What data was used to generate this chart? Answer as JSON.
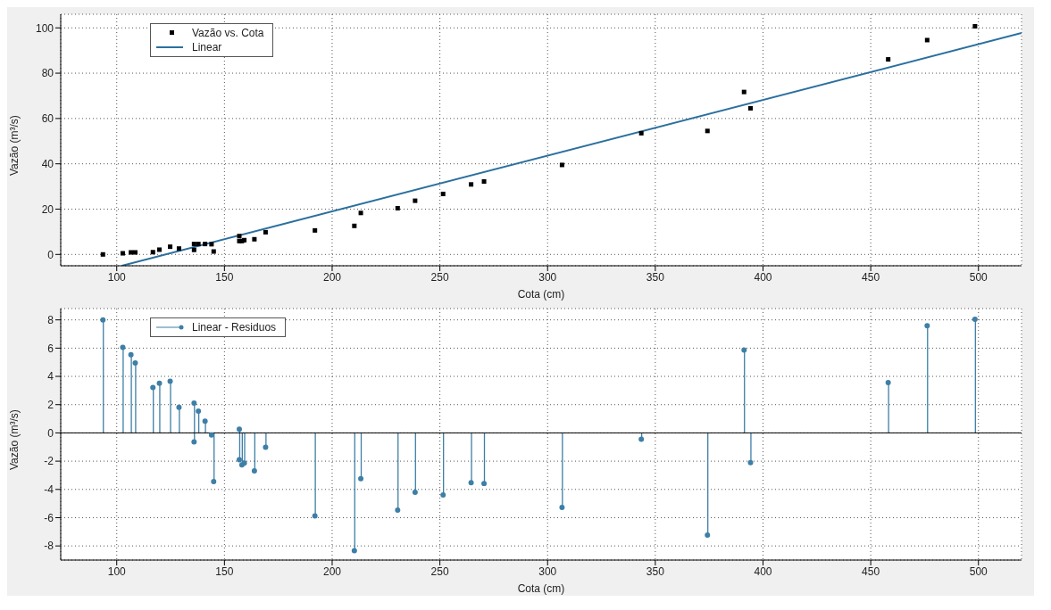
{
  "chart_data": [
    {
      "type": "scatter",
      "xlabel": "Cota (cm)",
      "ylabel": "Vazão (m³/s)",
      "xlim": [
        74,
        520
      ],
      "ylim": [
        -5,
        106
      ],
      "xticks": [
        100,
        150,
        200,
        250,
        300,
        350,
        400,
        450,
        500
      ],
      "yticks": [
        0,
        20,
        40,
        60,
        80,
        100
      ],
      "grid": true,
      "legend": "top left",
      "series": [
        {
          "name": "Vazão vs. Cota",
          "type": "scatter",
          "color": "#000000",
          "marker": "square",
          "x": [
            93.6,
            102.8,
            106.6,
            108.6,
            116.8,
            119.8,
            124.8,
            128.9,
            135.9,
            135.9,
            137.9,
            141.0,
            144.0,
            145.0,
            156.9,
            156.9,
            158.1,
            159.2,
            163.9,
            169.1,
            192.0,
            210.3,
            213.3,
            230.4,
            238.5,
            251.5,
            264.5,
            270.5,
            306.7,
            343.5,
            374.2,
            391.2,
            394.2,
            458.1,
            476.2,
            498.4
          ],
          "values": [
            0.0,
            0.5,
            0.9,
            0.9,
            1.0,
            2.1,
            3.4,
            2.6,
            4.6,
            2.0,
            4.6,
            4.6,
            4.5,
            1.3,
            8.1,
            5.9,
            5.9,
            6.3,
            6.7,
            9.8,
            10.6,
            12.6,
            18.3,
            20.4,
            23.7,
            26.7,
            30.9,
            32.2,
            39.5,
            53.5,
            54.5,
            71.7,
            64.5,
            86.1,
            94.6,
            100.7
          ]
        },
        {
          "name": "Linear",
          "type": "line",
          "color": "#2b6f9e",
          "marker": "none",
          "x": [
            102.4,
            520
          ],
          "values": [
            -5,
            97.7
          ]
        }
      ]
    },
    {
      "type": "lollipop",
      "xlabel": "Cota (cm)",
      "ylabel": "Vazão (m³/s)",
      "xlim": [
        74,
        520
      ],
      "ylim": [
        -9,
        8.8
      ],
      "xticks": [
        100,
        150,
        200,
        250,
        300,
        350,
        400,
        450,
        500
      ],
      "yticks": [
        -8,
        -6,
        -4,
        -2,
        0,
        2,
        4,
        6,
        8
      ],
      "grid": true,
      "legend": "top left",
      "series": [
        {
          "name": "Linear - Residuos",
          "type": "lollipop",
          "color": "#3d7fa6",
          "marker": "circle",
          "x": [
            93.6,
            102.8,
            106.6,
            108.6,
            116.8,
            119.8,
            124.8,
            128.9,
            135.9,
            135.9,
            137.9,
            141.0,
            144.0,
            145.0,
            156.9,
            156.9,
            158.1,
            159.2,
            163.9,
            169.1,
            192.0,
            210.3,
            213.3,
            230.4,
            238.5,
            251.5,
            264.5,
            270.5,
            306.7,
            343.5,
            374.2,
            391.2,
            394.2,
            458.1,
            476.2,
            498.4
          ],
          "values": [
            8.0,
            6.06,
            5.54,
            4.95,
            3.22,
            3.52,
            3.65,
            1.81,
            2.11,
            -0.64,
            1.54,
            0.83,
            -0.15,
            -3.45,
            0.26,
            -1.9,
            -2.26,
            -2.13,
            -2.69,
            -1.02,
            -5.88,
            -8.34,
            -3.24,
            -5.46,
            -4.2,
            -4.39,
            -3.52,
            -3.58,
            -5.27,
            -0.45,
            -7.23,
            5.86,
            -2.11,
            3.56,
            7.59,
            8.04
          ]
        }
      ]
    }
  ]
}
